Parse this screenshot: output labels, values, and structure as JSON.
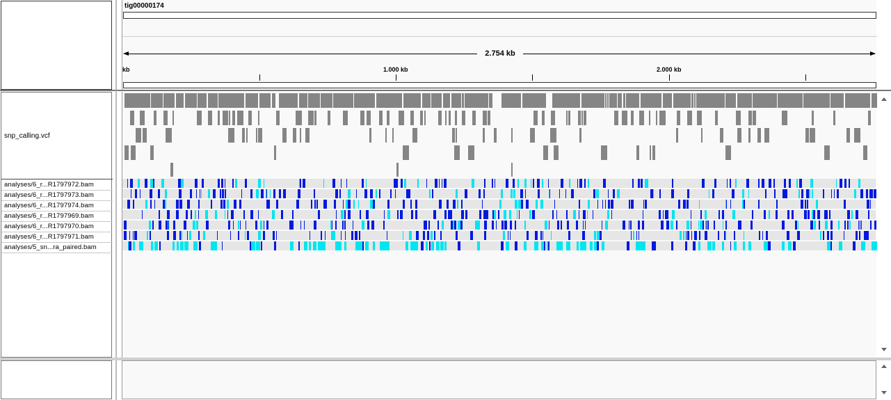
{
  "header": {
    "contig_name": "tig00000174",
    "span_label": "2.754 kb",
    "tick_labels": [
      "kb",
      "1.000 kb",
      "2.000 kb"
    ]
  },
  "vcf_track": {
    "name": "snp_calling.vcf"
  },
  "bam_tracks": [
    {
      "name": "analyses/6_r...R1797972.bam"
    },
    {
      "name": "analyses/6_r...R1797973.bam"
    },
    {
      "name": "analyses/6_r...R1797974.bam"
    },
    {
      "name": "analyses/6_r...R1797969.bam"
    },
    {
      "name": "analyses/6_r...R1797970.bam"
    },
    {
      "name": "analyses/6_r...R1797971.bam"
    },
    {
      "name": "analyses/5_sn...ra_paired.bam"
    }
  ],
  "colors": {
    "variant_block": "#858585",
    "het_call": "#0018e0",
    "homvar_call": "#00e6f0",
    "nocall": "#e6e6e6"
  }
}
